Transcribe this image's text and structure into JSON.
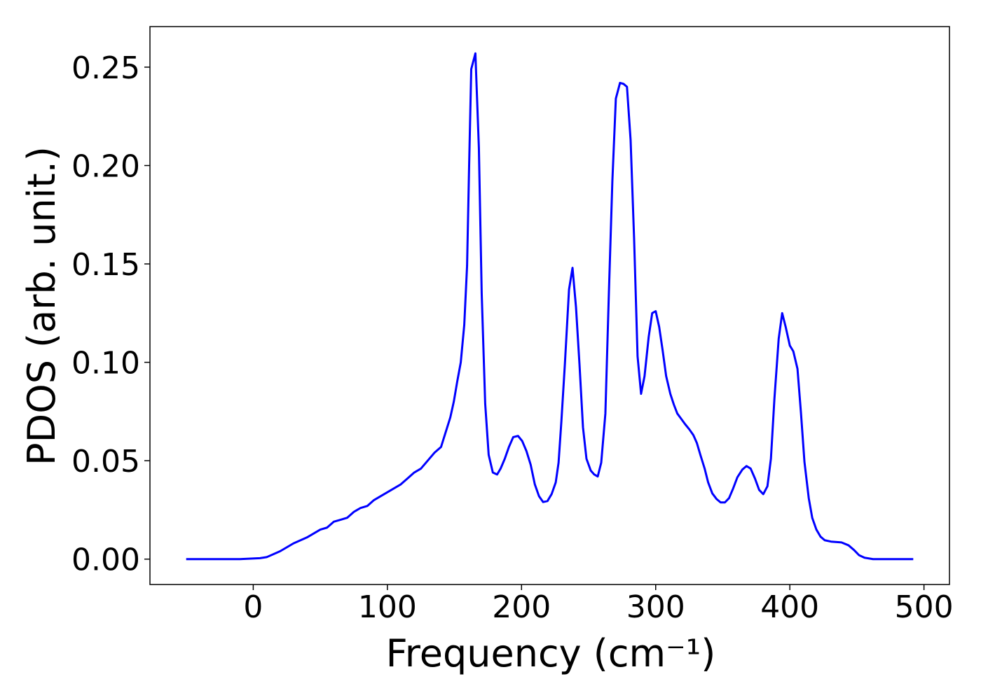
{
  "chart_data": {
    "type": "line",
    "xlabel": "Frequency (cm⁻¹)",
    "ylabel": "PDOS (arb. unit.)",
    "xlim": [
      -77,
      519
    ],
    "ylim": [
      -0.0129,
      0.2706
    ],
    "xticks": [
      0,
      100,
      200,
      300,
      400,
      500
    ],
    "yticks": [
      {
        "value": 0,
        "label": "0.00"
      },
      {
        "value": 0.05,
        "label": "0.05"
      },
      {
        "value": 0.1,
        "label": "0.10"
      },
      {
        "value": 0.15,
        "label": "0.15"
      },
      {
        "value": 0.2,
        "label": "0.20"
      },
      {
        "value": 0.25,
        "label": "0.25"
      }
    ],
    "grid": false,
    "series": [
      {
        "color": "#0000ff",
        "x": [
          -50,
          -10,
          5,
          10,
          20,
          30,
          40,
          45,
          50,
          55,
          60,
          65,
          70,
          75,
          80,
          85,
          90,
          95,
          100,
          105,
          110,
          115,
          120,
          125,
          130,
          135,
          140,
          146.9,
          149.5,
          152,
          154.7,
          157.3,
          159.4,
          160.9,
          162.5,
          165.6,
          168.2,
          170.3,
          172.9,
          175.5,
          178.6,
          181.8,
          184.4,
          187.5,
          190.6,
          193.8,
          197.4,
          200.5,
          203.6,
          206.8,
          209.9,
          213,
          216.1,
          219.3,
          222.4,
          225.5,
          227.6,
          229.7,
          232.3,
          235.4,
          238,
          240.6,
          243.2,
          245.8,
          248.4,
          251.6,
          254.2,
          256.8,
          259.4,
          262.5,
          265.1,
          267.7,
          270.3,
          273.4,
          276,
          278.6,
          281.3,
          283.9,
          286.5,
          289.1,
          291.7,
          294.8,
          297.4,
          300,
          302.6,
          305.2,
          307.8,
          310.9,
          313.5,
          316.1,
          318.8,
          321.9,
          325,
          328.1,
          330.7,
          333.3,
          336.5,
          339.1,
          342.2,
          345.3,
          348.4,
          351.6,
          354.7,
          357.8,
          360.9,
          364.6,
          367.7,
          370.8,
          374,
          377.1,
          380.2,
          383.3,
          385.9,
          388.5,
          391.7,
          394.3,
          396.9,
          400,
          402.6,
          405.7,
          408.3,
          410.9,
          414.1,
          416.7,
          419.8,
          422.9,
          426,
          430.7,
          438.5,
          443.8,
          447.9,
          451.6,
          455.7,
          462,
          492
        ],
        "values": [
          0,
          0,
          0.0005,
          0.001,
          0.004,
          0.008,
          0.011,
          0.013,
          0.015,
          0.016,
          0.019,
          0.02,
          0.021,
          0.024,
          0.026,
          0.027,
          0.03,
          0.032,
          0.034,
          0.036,
          0.038,
          0.041,
          0.044,
          0.046,
          0.05,
          0.054,
          0.057,
          0.072,
          0.08,
          0.09,
          0.1,
          0.119,
          0.149,
          0.199,
          0.249,
          0.257,
          0.209,
          0.135,
          0.079,
          0.053,
          0.044,
          0.043,
          0.046,
          0.051,
          0.057,
          0.062,
          0.0626,
          0.06,
          0.055,
          0.048,
          0.038,
          0.032,
          0.029,
          0.0295,
          0.033,
          0.039,
          0.049,
          0.07,
          0.099,
          0.137,
          0.148,
          0.128,
          0.099,
          0.067,
          0.051,
          0.045,
          0.043,
          0.042,
          0.049,
          0.074,
          0.135,
          0.192,
          0.234,
          0.242,
          0.2415,
          0.24,
          0.213,
          0.163,
          0.103,
          0.084,
          0.093,
          0.113,
          0.125,
          0.126,
          0.118,
          0.106,
          0.093,
          0.084,
          0.0786,
          0.074,
          0.0715,
          0.0686,
          0.066,
          0.063,
          0.059,
          0.053,
          0.046,
          0.039,
          0.0334,
          0.0306,
          0.0288,
          0.0288,
          0.031,
          0.036,
          0.0416,
          0.0455,
          0.0473,
          0.046,
          0.041,
          0.0352,
          0.033,
          0.037,
          0.051,
          0.0814,
          0.112,
          0.125,
          0.118,
          0.1085,
          0.1056,
          0.0967,
          0.0743,
          0.0494,
          0.031,
          0.021,
          0.015,
          0.0114,
          0.0096,
          0.0089,
          0.0085,
          0.007,
          0.0046,
          0.002,
          0.0007,
          0,
          0
        ]
      }
    ]
  }
}
